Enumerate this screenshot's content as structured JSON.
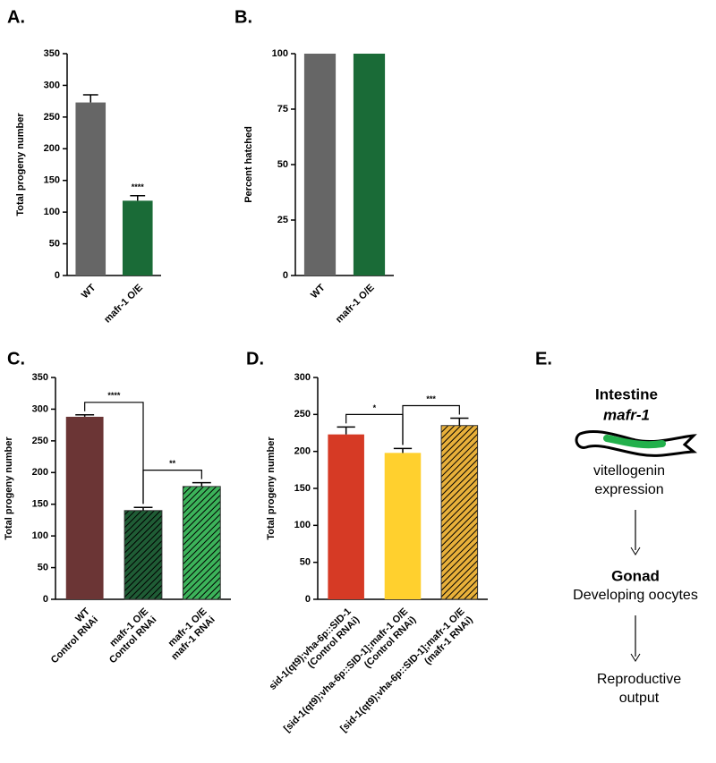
{
  "chart_data": [
    {
      "type": "bar",
      "label": "A.",
      "ylabel": "Total progeny number",
      "categories": [
        [
          "WT"
        ],
        [
          "mafr-1 O/E"
        ]
      ],
      "values": [
        273,
        118
      ],
      "errors": [
        12,
        8
      ],
      "colors": [
        "#666666",
        "#1a6b37"
      ],
      "hatched": [
        false,
        false
      ],
      "ylim": [
        0,
        350
      ],
      "yticks": [
        0,
        50,
        100,
        150,
        200,
        250,
        300,
        350
      ],
      "annotations": [
        {
          "text": "****",
          "bar": 1
        }
      ]
    },
    {
      "type": "bar",
      "label": "B.",
      "ylabel": "Percent hatched",
      "categories": [
        [
          "WT"
        ],
        [
          "mafr-1 O/E"
        ]
      ],
      "values": [
        100,
        100
      ],
      "colors": [
        "#666666",
        "#1a6b37"
      ],
      "hatched": [
        false,
        false
      ],
      "ylim": [
        0,
        100
      ],
      "yticks": [
        0,
        25,
        50,
        75,
        100
      ]
    },
    {
      "type": "bar",
      "label": "C.",
      "ylabel": "Total progeny number",
      "categories": [
        [
          "WT",
          "Control RNAi"
        ],
        [
          "mafr-1 O/E",
          "Control RNAi"
        ],
        [
          "mafr-1 O/E",
          "mafr-1 RNAi"
        ]
      ],
      "values": [
        288,
        140,
        178
      ],
      "errors": [
        3,
        5,
        6
      ],
      "colors": [
        "#6b3535",
        "#1f5c35",
        "#3cb35a"
      ],
      "hatched": [
        false,
        true,
        true
      ],
      "ylim": [
        0,
        350
      ],
      "yticks": [
        0,
        50,
        100,
        150,
        200,
        250,
        300,
        350
      ],
      "brackets": [
        {
          "text": "****",
          "pair": [
            0,
            1
          ]
        },
        {
          "text": "**",
          "pair": [
            1,
            2
          ]
        }
      ]
    },
    {
      "type": "bar",
      "label": "D.",
      "ylabel": "Total progeny number",
      "categories": [
        [
          "sid-1(qt9);vha-6p::SID-1",
          "(Control RNAi)"
        ],
        [
          "[sid-1(qt9);vha-6p::SID-1];mafr-1 O/E",
          "(Control RNAi)"
        ],
        [
          "[sid-1(qt9);vha-6p::SID-1];mafr-1 O/E",
          "(mafr-1 RNAi)"
        ]
      ],
      "values": [
        223,
        198,
        235
      ],
      "errors": [
        10,
        6,
        10
      ],
      "colors": [
        "#d63a25",
        "#ffd02e",
        "#e8b03a"
      ],
      "hatched": [
        false,
        false,
        true
      ],
      "ylim": [
        0,
        300
      ],
      "yticks": [
        0,
        50,
        100,
        150,
        200,
        250,
        300
      ],
      "brackets": [
        {
          "text": "*",
          "pair": [
            0,
            1
          ]
        },
        {
          "text": "***",
          "pair": [
            1,
            2
          ]
        }
      ]
    }
  ],
  "diagram": {
    "label": "E.",
    "tissue1": "Intestine",
    "gene": "mafr-1",
    "process": [
      "vitellogenin",
      "expression"
    ],
    "tissue2": "Gonad",
    "cells": "Developing oocytes",
    "outcome": [
      "Reproductive",
      "output"
    ]
  }
}
